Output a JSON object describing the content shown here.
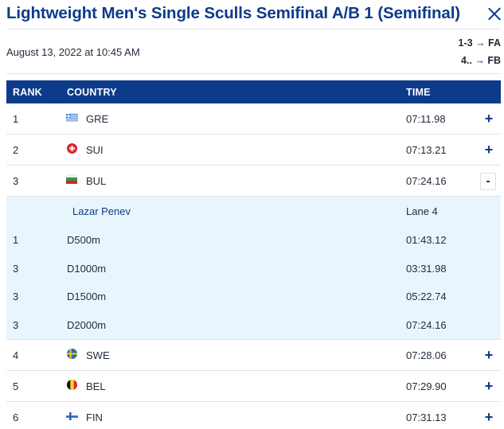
{
  "header": {
    "title": "Lightweight Men's Single Sculls Semifinal A/B 1 (Semifinal)",
    "date": "August 13, 2022 at 10:45 AM",
    "progression": [
      "1-3 → FA",
      "4.. → FB"
    ]
  },
  "table": {
    "columns": {
      "rank": "RANK",
      "country": "COUNTRY",
      "time": "TIME"
    },
    "rows": [
      {
        "rank": "1",
        "country": "GRE",
        "time": "07:11.98",
        "toggle": "+",
        "flag": "greece-flag-icon"
      },
      {
        "rank": "2",
        "country": "SUI",
        "time": "07:13.21",
        "toggle": "+",
        "flag": "switzerland-flag-icon"
      },
      {
        "rank": "3",
        "country": "BUL",
        "time": "07:24.16",
        "toggle": "-",
        "flag": "bulgaria-flag-icon"
      },
      {
        "rank": "4",
        "country": "SWE",
        "time": "07:28.06",
        "toggle": "+",
        "flag": "sweden-flag-icon"
      },
      {
        "rank": "5",
        "country": "BEL",
        "time": "07:29.90",
        "toggle": "+",
        "flag": "belgium-flag-icon"
      },
      {
        "rank": "6",
        "country": "FIN",
        "time": "07:31.13",
        "toggle": "+",
        "flag": "finland-flag-icon"
      }
    ],
    "expanded": {
      "athlete": "Lazar Penev",
      "lane": "Lane 4",
      "splits": [
        {
          "rank": "1",
          "distance": "D500m",
          "time": "01:43.12"
        },
        {
          "rank": "3",
          "distance": "D1000m",
          "time": "03:31.98"
        },
        {
          "rank": "3",
          "distance": "D1500m",
          "time": "05:22.74"
        },
        {
          "rank": "3",
          "distance": "D2000m",
          "time": "07:24.16"
        }
      ]
    }
  },
  "colors": {
    "brand": "#0d3b8a",
    "detail_bg": "#e9f5fd",
    "divider": "#dfe3e8"
  }
}
